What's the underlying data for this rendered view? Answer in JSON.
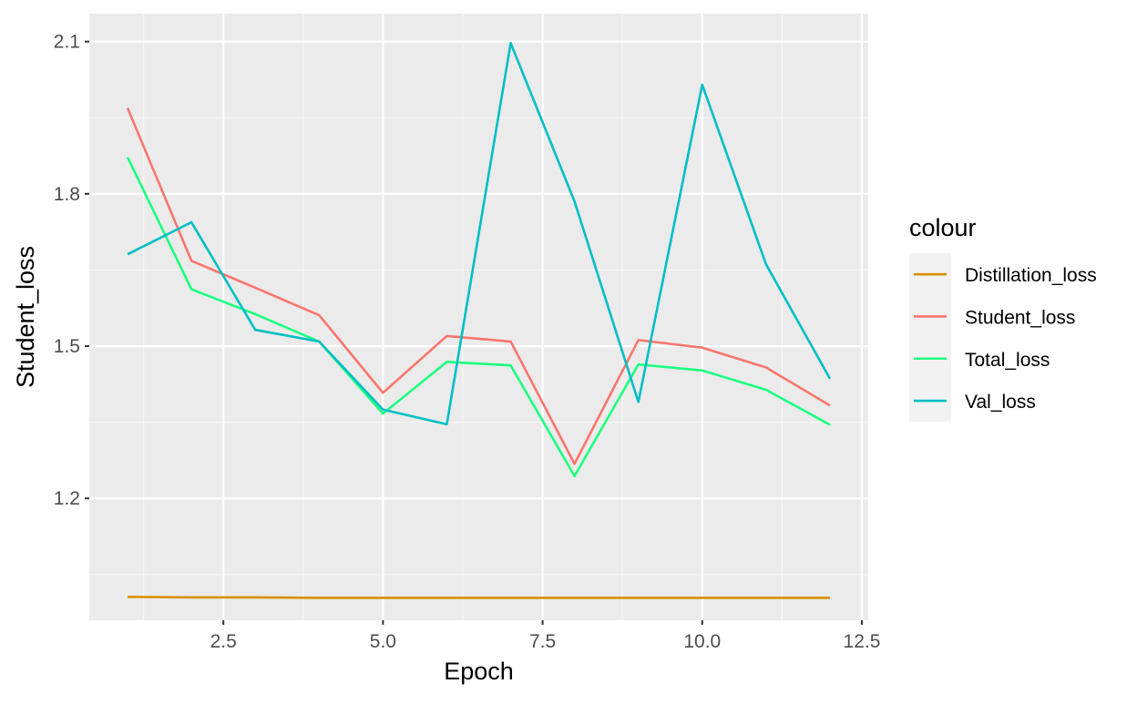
{
  "chart_data": {
    "type": "line",
    "title": "",
    "xlabel": "Epoch",
    "ylabel": "Student_loss",
    "xlim": [
      0.4,
      12.6
    ],
    "ylim": [
      0.96,
      2.155
    ],
    "x_ticks": [
      2.5,
      5.0,
      7.5,
      10.0,
      12.5
    ],
    "x_tick_labels": [
      "2.5",
      "5.0",
      "7.5",
      "10.0",
      "12.5"
    ],
    "y_ticks": [
      1.2,
      1.5,
      1.8,
      2.1
    ],
    "y_tick_labels": [
      "1.2",
      "1.5",
      "1.8",
      "2.1"
    ],
    "grid": true,
    "legend_title": "colour",
    "legend_position": "right",
    "x": [
      1,
      2,
      3,
      4,
      5,
      6,
      7,
      8,
      9,
      10,
      11,
      12
    ],
    "series": [
      {
        "name": "Distillation_loss",
        "color": "#D89000",
        "values": [
          1.006,
          1.005,
          1.005,
          1.004,
          1.004,
          1.004,
          1.004,
          1.004,
          1.004,
          1.004,
          1.004,
          1.004
        ]
      },
      {
        "name": "Student_loss",
        "color": "#F8766D",
        "values": [
          1.969,
          1.668,
          1.615,
          1.561,
          1.408,
          1.52,
          1.509,
          1.268,
          1.512,
          1.497,
          1.458,
          1.383
        ]
      },
      {
        "name": "Total_loss",
        "color": "#1CFF7F",
        "values": [
          1.872,
          1.612,
          1.563,
          1.509,
          1.367,
          1.469,
          1.462,
          1.244,
          1.464,
          1.452,
          1.414,
          1.345
        ]
      },
      {
        "name": "Val_loss",
        "color": "#00BFC4",
        "values": [
          1.681,
          1.744,
          1.532,
          1.509,
          1.375,
          1.346,
          2.097,
          1.785,
          1.39,
          2.015,
          1.661,
          1.436
        ]
      }
    ]
  }
}
